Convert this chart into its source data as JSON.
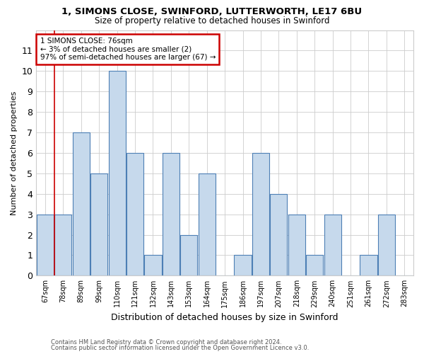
{
  "title1": "1, SIMONS CLOSE, SWINFORD, LUTTERWORTH, LE17 6BU",
  "title2": "Size of property relative to detached houses in Swinford",
  "xlabel": "Distribution of detached houses by size in Swinford",
  "ylabel": "Number of detached properties",
  "footnote1": "Contains HM Land Registry data © Crown copyright and database right 2024.",
  "footnote2": "Contains public sector information licensed under the Open Government Licence v3.0.",
  "annotation_line1": "1 SIMONS CLOSE: 76sqm",
  "annotation_line2": "← 3% of detached houses are smaller (2)",
  "annotation_line3": "97% of semi-detached houses are larger (67) →",
  "bar_labels": [
    "67sqm",
    "78sqm",
    "89sqm",
    "99sqm",
    "110sqm",
    "121sqm",
    "132sqm",
    "143sqm",
    "153sqm",
    "164sqm",
    "175sqm",
    "186sqm",
    "197sqm",
    "207sqm",
    "218sqm",
    "229sqm",
    "240sqm",
    "251sqm",
    "261sqm",
    "272sqm",
    "283sqm"
  ],
  "bar_values": [
    3,
    3,
    7,
    5,
    10,
    6,
    1,
    6,
    2,
    5,
    0,
    1,
    6,
    4,
    3,
    1,
    3,
    0,
    1,
    3,
    0
  ],
  "bar_color": "#c6d9ec",
  "bar_edge_color": "#4d7fb5",
  "vline_x": 0.5,
  "annotation_box_color": "#cc0000",
  "ylim": [
    0,
    12
  ],
  "yticks": [
    0,
    1,
    2,
    3,
    4,
    5,
    6,
    7,
    8,
    9,
    10,
    11
  ],
  "grid_color": "#cccccc",
  "bg_color": "#ffffff",
  "vline_color": "#cc0000"
}
